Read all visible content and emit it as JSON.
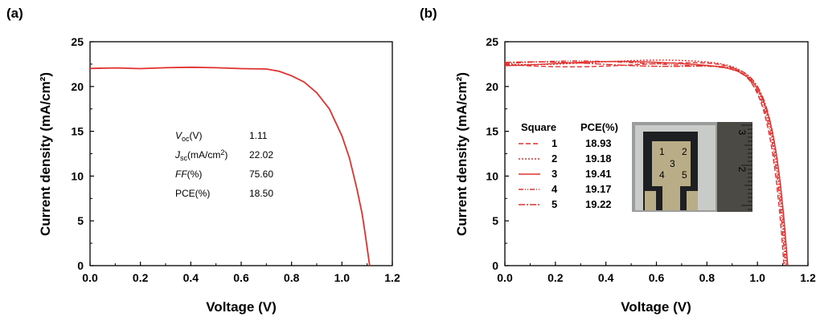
{
  "chart_data": [
    {
      "panel_label": "(a)",
      "type": "line",
      "xlabel": "Voltage (V)",
      "ylabel": "Current density (mA/cm²)",
      "xlim": [
        0.0,
        1.2
      ],
      "ylim": [
        0,
        25
      ],
      "xticks": [
        "0.0",
        "0.2",
        "0.4",
        "0.6",
        "0.8",
        "1.0",
        "1.2"
      ],
      "yticks": [
        "0",
        "5",
        "10",
        "15",
        "20",
        "25"
      ],
      "color": "#e0312f",
      "series": [
        {
          "x": [
            0.0,
            0.1,
            0.2,
            0.3,
            0.4,
            0.5,
            0.6,
            0.7,
            0.75,
            0.8,
            0.85,
            0.9,
            0.95,
            1.0,
            1.03,
            1.06,
            1.08,
            1.09,
            1.1,
            1.11
          ],
          "y": [
            22.02,
            22.08,
            22.0,
            22.1,
            22.15,
            22.1,
            22.0,
            21.95,
            21.7,
            21.2,
            20.5,
            19.3,
            17.5,
            14.5,
            12.0,
            8.5,
            5.8,
            4.0,
            2.0,
            0.0
          ]
        }
      ],
      "parameters": [
        {
          "name": "V",
          "sub": "oc",
          "unit": "(V)",
          "value": "1.11"
        },
        {
          "name": "J",
          "sub": "sc",
          "unit": "(mA/cm",
          "unit_sup": "2",
          "unit_tail": ")",
          "value": "22.02"
        },
        {
          "name": "FF",
          "sub": "",
          "unit": "(%)",
          "value": "75.60"
        },
        {
          "name": "PCE(%)",
          "sub": "",
          "unit": "",
          "value": "18.50"
        }
      ]
    },
    {
      "panel_label": "(b)",
      "type": "line",
      "xlabel": "Voltage (V)",
      "ylabel": "Current density (mA/cm²)",
      "xlim": [
        0.0,
        1.2
      ],
      "ylim": [
        0,
        25
      ],
      "xticks": [
        "0.0",
        "0.2",
        "0.4",
        "0.6",
        "0.8",
        "1.0",
        "1.2"
      ],
      "yticks": [
        "0",
        "5",
        "10",
        "15",
        "20",
        "25"
      ],
      "color": "#e0312f",
      "legend_header": {
        "col1": "Square",
        "col2": "PCE(%)"
      },
      "series": [
        {
          "name": "1",
          "pce": "18.93",
          "dash": "6,3",
          "jsc": 22.45,
          "voc": 1.105
        },
        {
          "name": "2",
          "pce": "19.18",
          "dash": "2,2",
          "jsc": 22.7,
          "voc": 1.115
        },
        {
          "name": "3",
          "pce": "19.41",
          "dash": "",
          "jsc": 22.55,
          "voc": 1.12
        },
        {
          "name": "4",
          "pce": "19.17",
          "dash": "6,2,1,2,1,2",
          "jsc": 22.6,
          "voc": 1.11
        },
        {
          "name": "5",
          "pce": "19.22",
          "dash": "8,2,2,2",
          "jsc": 22.5,
          "voc": 1.118
        }
      ],
      "inset": {
        "pixel_labels": [
          "1",
          "2",
          "3",
          "4",
          "5"
        ],
        "ruler_labels": [
          "3",
          "2"
        ]
      }
    }
  ]
}
